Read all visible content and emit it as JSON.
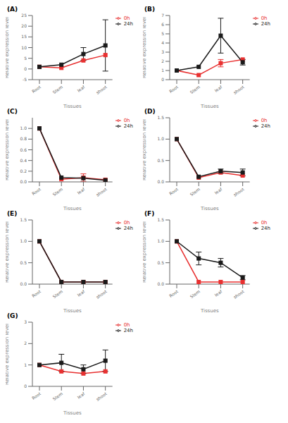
{
  "chart_data": [
    {
      "type": "line",
      "title": "(A)",
      "x_label": "Tissues",
      "y_label": "Relative expression level",
      "categories": [
        "Root",
        "Stem",
        "leaf",
        "shoot"
      ],
      "series": [
        {
          "name": "0h",
          "color": "#e83030",
          "marker": "square",
          "values": [
            1,
            0.5,
            4,
            6.5
          ],
          "errors": [
            0,
            0,
            0,
            0
          ]
        },
        {
          "name": "24h",
          "color": "#1a1a1a",
          "marker": "square",
          "values": [
            1,
            2,
            7,
            11
          ],
          "errors": [
            0,
            0,
            3,
            12
          ]
        }
      ],
      "ylim": [
        -5,
        25
      ],
      "yticks": [
        -5,
        0,
        5,
        10,
        15,
        20,
        25
      ],
      "grid": false,
      "legend": "right"
    },
    {
      "type": "line",
      "title": "(B)",
      "x_label": "Tissues",
      "y_label": "Relative expression level",
      "categories": [
        "Root",
        "Stem",
        "leaf",
        "shoot"
      ],
      "series": [
        {
          "name": "0h",
          "color": "#e83030",
          "marker": "square",
          "values": [
            1,
            0.5,
            1.8,
            2.2
          ],
          "errors": [
            0,
            0,
            0.4,
            0
          ]
        },
        {
          "name": "24h",
          "color": "#1a1a1a",
          "marker": "square",
          "values": [
            1,
            1.4,
            4.8,
            1.9
          ],
          "errors": [
            0,
            0,
            1.9,
            0.3
          ]
        }
      ],
      "ylim": [
        0,
        7
      ],
      "yticks": [
        0,
        1,
        2,
        3,
        4,
        5,
        6,
        7
      ],
      "grid": false,
      "legend": "right"
    },
    {
      "type": "line",
      "title": "(C)",
      "x_label": "Tissues",
      "y_label": "Relative expression level",
      "categories": [
        "Root",
        "Stem",
        "leaf",
        "shoot"
      ],
      "series": [
        {
          "name": "0h",
          "color": "#e83030",
          "marker": "square",
          "values": [
            1,
            0.05,
            0.08,
            0.04
          ],
          "errors": [
            0,
            0,
            0.07,
            0
          ]
        },
        {
          "name": "24h",
          "color": "#1a1a1a",
          "marker": "square",
          "values": [
            1,
            0.08,
            0.07,
            0.03
          ],
          "errors": [
            0,
            0,
            0,
            0
          ]
        }
      ],
      "ylim": [
        0,
        1.2
      ],
      "yticks": [
        {
          "value": 0,
          "label": "0.0"
        },
        0.2,
        0.4,
        0.6,
        0.8,
        {
          "value": 1,
          "label": "1.0"
        }
      ],
      "grid": false,
      "legend": "right"
    },
    {
      "type": "line",
      "title": "(D)",
      "x_label": "Tissues",
      "y_label": "Relative expression level",
      "categories": [
        "Root",
        "Stem",
        "leaf",
        "shoot"
      ],
      "series": [
        {
          "name": "0h",
          "color": "#e83030",
          "marker": "square",
          "values": [
            1,
            0.1,
            0.22,
            0.15
          ],
          "errors": [
            0,
            0,
            0,
            0
          ]
        },
        {
          "name": "24h",
          "color": "#1a1a1a",
          "marker": "square",
          "values": [
            1,
            0.12,
            0.25,
            0.22
          ],
          "errors": [
            0,
            0,
            0.05,
            0.08
          ]
        }
      ],
      "ylim": [
        0,
        1.5
      ],
      "yticks": [
        {
          "value": 0,
          "label": "0.0"
        },
        0.5,
        {
          "value": 1,
          "label": "1.0"
        },
        1.5
      ],
      "grid": false,
      "legend": "right"
    },
    {
      "type": "line",
      "title": "(E)",
      "x_label": "Tissues",
      "y_label": "Relative expression level",
      "categories": [
        "Root",
        "Stem",
        "leaf",
        "shoot"
      ],
      "series": [
        {
          "name": "0h",
          "color": "#e83030",
          "marker": "square",
          "values": [
            1,
            0.05,
            0.05,
            0.05
          ],
          "errors": [
            0,
            0,
            0,
            0
          ]
        },
        {
          "name": "24h",
          "color": "#1a1a1a",
          "marker": "square",
          "values": [
            1,
            0.05,
            0.05,
            0.05
          ],
          "errors": [
            0,
            0,
            0,
            0
          ]
        }
      ],
      "ylim": [
        0,
        1.5
      ],
      "yticks": [
        {
          "value": 0,
          "label": "0.0"
        },
        0.5,
        {
          "value": 1,
          "label": "1.0"
        },
        1.5
      ],
      "grid": false,
      "legend": "right"
    },
    {
      "type": "line",
      "title": "(F)",
      "x_label": "Tissues",
      "y_label": "Relative expression level",
      "categories": [
        "Root",
        "Stem",
        "leaf",
        "shoot"
      ],
      "series": [
        {
          "name": "0h",
          "color": "#e83030",
          "marker": "square",
          "values": [
            1,
            0.05,
            0.05,
            0.05
          ],
          "errors": [
            0,
            0,
            0,
            0
          ]
        },
        {
          "name": "24h",
          "color": "#1a1a1a",
          "marker": "square",
          "values": [
            1,
            0.6,
            0.5,
            0.15
          ],
          "errors": [
            0,
            0.15,
            0.1,
            0.05
          ]
        }
      ],
      "ylim": [
        0,
        1.5
      ],
      "yticks": [
        {
          "value": 0,
          "label": "0.0"
        },
        0.5,
        {
          "value": 1,
          "label": "1.0"
        },
        1.5
      ],
      "grid": false,
      "legend": "right"
    },
    {
      "type": "line",
      "title": "(G)",
      "x_label": "Tissues",
      "y_label": "Relative expression level",
      "categories": [
        "Root",
        "Stem",
        "leaf",
        "shoot"
      ],
      "series": [
        {
          "name": "0h",
          "color": "#e83030",
          "marker": "square",
          "values": [
            1,
            0.7,
            0.6,
            0.7
          ],
          "errors": [
            0,
            0,
            0,
            0
          ]
        },
        {
          "name": "24h",
          "color": "#1a1a1a",
          "marker": "square",
          "values": [
            1,
            1.1,
            0.8,
            1.2
          ],
          "errors": [
            0,
            0.4,
            0.2,
            0.5
          ]
        }
      ],
      "ylim": [
        0,
        3
      ],
      "yticks": [
        0,
        1,
        2,
        3
      ],
      "grid": false,
      "legend": "right"
    }
  ]
}
